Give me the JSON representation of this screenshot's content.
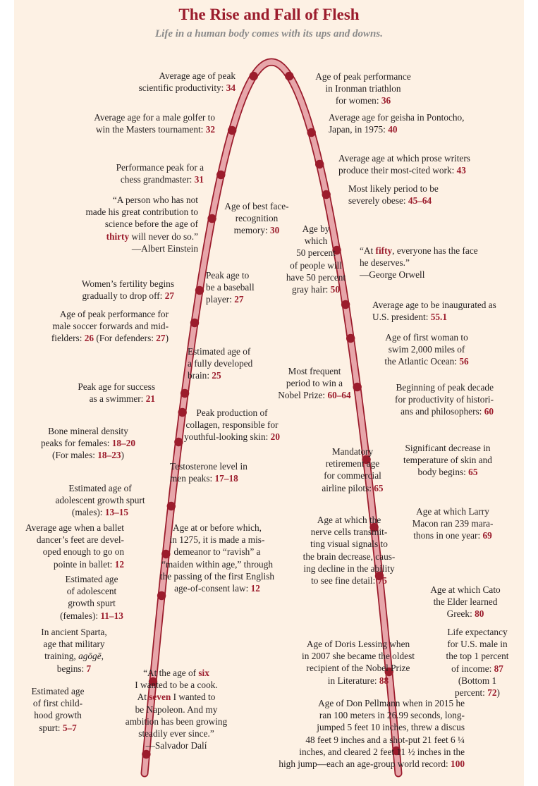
{
  "title": "The Rise and Fall of Flesh",
  "subtitle": "Life in a human body comes with its ups and downs.",
  "colors": {
    "background": "#fdf1e4",
    "curve_fill": "#e7a6aa",
    "curve_edge": "#9b1c2c",
    "dot": "#9b1c2c",
    "highlight": "#9b1c2c"
  },
  "annotations": [
    {
      "id": "peak-scientific-productivity",
      "side": "left",
      "age": "34",
      "lines": [
        [
          {
            "t": "Average age of peak"
          }
        ],
        [
          {
            "t": "scientific productivity: "
          },
          {
            "t": "34",
            "b": true
          }
        ]
      ]
    },
    {
      "id": "peak-ironman-women",
      "side": "right",
      "age": "36",
      "lines": [
        [
          {
            "t": "Age of peak performance"
          }
        ],
        [
          {
            "t": "in Ironman triathlon"
          }
        ],
        [
          {
            "t": "for women: "
          },
          {
            "t": "36",
            "b": true
          }
        ]
      ]
    },
    {
      "id": "masters-golfer",
      "side": "left",
      "age": "32",
      "lines": [
        [
          {
            "t": "Average age for a male golfer to"
          }
        ],
        [
          {
            "t": "win the Masters tournament: "
          },
          {
            "t": "32",
            "b": true
          }
        ]
      ]
    },
    {
      "id": "geisha-pontocho",
      "side": "right",
      "age": "40",
      "lines": [
        [
          {
            "t": "Average age for geisha in Pontocho,"
          }
        ],
        [
          {
            "t": "Japan, in 1975: "
          },
          {
            "t": "40",
            "b": true
          }
        ]
      ]
    },
    {
      "id": "chess-grandmaster",
      "side": "left",
      "age": "31",
      "lines": [
        [
          {
            "t": "Performance peak for a"
          }
        ],
        [
          {
            "t": "chess grandmaster: "
          },
          {
            "t": "31",
            "b": true
          }
        ]
      ]
    },
    {
      "id": "prose-writers",
      "side": "right",
      "age": "43",
      "lines": [
        [
          {
            "t": "Average age at which prose writers"
          }
        ],
        [
          {
            "t": "produce their most-cited work: "
          },
          {
            "t": "43",
            "b": true
          }
        ]
      ]
    },
    {
      "id": "severely-obese",
      "side": "right",
      "age": "45–64",
      "lines": [
        [
          {
            "t": "Most likely period to be"
          }
        ],
        [
          {
            "t": "severely obese: "
          },
          {
            "t": "45–64",
            "b": true
          }
        ]
      ]
    },
    {
      "id": "einstein-quote",
      "side": "left",
      "age": "thirty",
      "lines": [
        [
          {
            "t": "“A person who has not"
          }
        ],
        [
          {
            "t": "made his great contribution to"
          }
        ],
        [
          {
            "t": "science before the age of"
          }
        ],
        [
          {
            "t": "thirty",
            "b": true
          },
          {
            "t": " will never do so.”"
          }
        ],
        [
          {
            "t": "—Albert Einstein"
          }
        ]
      ]
    },
    {
      "id": "face-recognition",
      "side": "left",
      "age": "30",
      "lines": [
        [
          {
            "t": "Age of best face-"
          }
        ],
        [
          {
            "t": "recognition"
          }
        ],
        [
          {
            "t": "memory: "
          },
          {
            "t": "30",
            "b": true
          }
        ]
      ]
    },
    {
      "id": "gray-hair",
      "side": "right",
      "age": "50",
      "lines": [
        [
          {
            "t": "Age by"
          }
        ],
        [
          {
            "t": "which"
          }
        ],
        [
          {
            "t": "50 percent"
          }
        ],
        [
          {
            "t": "of people will"
          }
        ],
        [
          {
            "t": "have 50 percent"
          }
        ],
        [
          {
            "t": "gray hair: "
          },
          {
            "t": "50",
            "b": true
          }
        ]
      ]
    },
    {
      "id": "orwell-quote",
      "side": "right",
      "age": "fifty",
      "lines": [
        [
          {
            "t": "“At "
          },
          {
            "t": "fifty",
            "b": true
          },
          {
            "t": ", everyone has the face"
          }
        ],
        [
          {
            "t": "he deserves.”"
          }
        ],
        [
          {
            "t": "—George Orwell"
          }
        ]
      ]
    },
    {
      "id": "fertility-drop",
      "side": "left",
      "age": "27",
      "lines": [
        [
          {
            "t": "Women’s fertility begins"
          }
        ],
        [
          {
            "t": "gradually to drop off: "
          },
          {
            "t": "27",
            "b": true
          }
        ]
      ]
    },
    {
      "id": "baseball-player",
      "side": "left",
      "age": "27",
      "lines": [
        [
          {
            "t": "Peak age to"
          }
        ],
        [
          {
            "t": "be a baseball"
          }
        ],
        [
          {
            "t": "player: "
          },
          {
            "t": "27",
            "b": true
          }
        ]
      ]
    },
    {
      "id": "us-president",
      "side": "right",
      "age": "55.1",
      "lines": [
        [
          {
            "t": "Average age to be inaugurated as"
          }
        ],
        [
          {
            "t": "U.S. president: "
          },
          {
            "t": "55.1",
            "b": true
          }
        ]
      ]
    },
    {
      "id": "soccer-forwards",
      "side": "left",
      "age": "26",
      "lines": [
        [
          {
            "t": "Age of peak performance for"
          }
        ],
        [
          {
            "t": "male soccer forwards and mid-"
          }
        ],
        [
          {
            "t": "fielders: "
          },
          {
            "t": "26",
            "b": true
          },
          {
            "t": " (For defenders: "
          },
          {
            "t": "27",
            "b": true
          },
          {
            "t": ")"
          }
        ]
      ]
    },
    {
      "id": "atlantic-swim",
      "side": "right",
      "age": "56",
      "lines": [
        [
          {
            "t": "Age of first woman to"
          }
        ],
        [
          {
            "t": "swim 2,000 miles of"
          }
        ],
        [
          {
            "t": "the Atlantic Ocean: "
          },
          {
            "t": "56",
            "b": true
          }
        ]
      ]
    },
    {
      "id": "developed-brain",
      "side": "left",
      "age": "25",
      "lines": [
        [
          {
            "t": "Estimated age of"
          }
        ],
        [
          {
            "t": "a fully developed"
          }
        ],
        [
          {
            "t": "brain: "
          },
          {
            "t": "25",
            "b": true
          }
        ]
      ]
    },
    {
      "id": "nobel-prize",
      "side": "right",
      "age": "60–64",
      "lines": [
        [
          {
            "t": "Most frequent"
          }
        ],
        [
          {
            "t": "period to win a"
          }
        ],
        [
          {
            "t": "Nobel Prize: "
          },
          {
            "t": "60–64",
            "b": true
          }
        ]
      ]
    },
    {
      "id": "historians-philosophers",
      "side": "right",
      "age": "60",
      "lines": [
        [
          {
            "t": "Beginning of peak decade"
          }
        ],
        [
          {
            "t": "for productivity of histori-"
          }
        ],
        [
          {
            "t": "ans and philosophers: "
          },
          {
            "t": "60",
            "b": true
          }
        ]
      ]
    },
    {
      "id": "swimmer",
      "side": "left",
      "age": "21",
      "lines": [
        [
          {
            "t": "Peak age for success"
          }
        ],
        [
          {
            "t": "as a swimmer: "
          },
          {
            "t": "21",
            "b": true
          }
        ]
      ]
    },
    {
      "id": "collagen",
      "side": "left",
      "age": "20",
      "lines": [
        [
          {
            "t": "Peak production of"
          }
        ],
        [
          {
            "t": "collagen, responsible for"
          }
        ],
        [
          {
            "t": "youthful-looking skin: "
          },
          {
            "t": "20",
            "b": true
          }
        ]
      ]
    },
    {
      "id": "bone-density",
      "side": "left",
      "age": "18–20",
      "lines": [
        [
          {
            "t": "Bone mineral density"
          }
        ],
        [
          {
            "t": "peaks for females: "
          },
          {
            "t": "18–20",
            "b": true
          }
        ],
        [
          {
            "t": "(For males: "
          },
          {
            "t": "18–23",
            "b": true
          },
          {
            "t": ")"
          }
        ]
      ]
    },
    {
      "id": "testosterone",
      "side": "left",
      "age": "17–18",
      "lines": [
        [
          {
            "t": "Testosterone level in"
          }
        ],
        [
          {
            "t": "men peaks: "
          },
          {
            "t": "17–18",
            "b": true
          }
        ]
      ]
    },
    {
      "id": "airline-pilots",
      "side": "right",
      "age": "65",
      "lines": [
        [
          {
            "t": "Mandatory"
          }
        ],
        [
          {
            "t": "retirement age"
          }
        ],
        [
          {
            "t": "for commercial"
          }
        ],
        [
          {
            "t": "airline pilots: "
          },
          {
            "t": "65",
            "b": true
          }
        ]
      ]
    },
    {
      "id": "skin-temperature",
      "side": "right",
      "age": "65",
      "lines": [
        [
          {
            "t": "Significant decrease in"
          }
        ],
        [
          {
            "t": "temperature of skin and"
          }
        ],
        [
          {
            "t": "body begins: "
          },
          {
            "t": "65",
            "b": true
          }
        ]
      ]
    },
    {
      "id": "growth-spurt-males",
      "side": "left",
      "age": "13–15",
      "lines": [
        [
          {
            "t": "Estimated age of"
          }
        ],
        [
          {
            "t": "adolescent growth spurt"
          }
        ],
        [
          {
            "t": "(males): "
          },
          {
            "t": "13–15",
            "b": true
          }
        ]
      ]
    },
    {
      "id": "larry-macon",
      "side": "right",
      "age": "69",
      "lines": [
        [
          {
            "t": "Age at which Larry"
          }
        ],
        [
          {
            "t": "Macon ran 239 mara-"
          }
        ],
        [
          {
            "t": "thons in one year: "
          },
          {
            "t": "69",
            "b": true
          }
        ]
      ]
    },
    {
      "id": "ballet-pointe",
      "side": "left",
      "age": "12",
      "lines": [
        [
          {
            "t": "Average age when a ballet"
          }
        ],
        [
          {
            "t": "dancer’s feet are devel-"
          }
        ],
        [
          {
            "t": "oped enough to go on"
          }
        ],
        [
          {
            "t": "pointe in ballet: "
          },
          {
            "t": "12",
            "b": true
          }
        ]
      ]
    },
    {
      "id": "age-of-consent",
      "side": "left",
      "age": "12",
      "lines": [
        [
          {
            "t": "Age at or before which,"
          }
        ],
        [
          {
            "t": "in 1275, it is made a mis-"
          }
        ],
        [
          {
            "t": "demeanor to “ravish” a"
          }
        ],
        [
          {
            "t": "“maiden within age,” through"
          }
        ],
        [
          {
            "t": "the passing of the first English"
          }
        ],
        [
          {
            "t": "age-of-consent law: "
          },
          {
            "t": "12",
            "b": true
          }
        ]
      ]
    },
    {
      "id": "visual-nerve-cells",
      "side": "right",
      "age": "75",
      "lines": [
        [
          {
            "t": "Age at which the"
          }
        ],
        [
          {
            "t": "nerve cells transmit-"
          }
        ],
        [
          {
            "t": "ting visual signals to"
          }
        ],
        [
          {
            "t": "the brain decrease, caus-"
          }
        ],
        [
          {
            "t": "ing decline in the ability"
          }
        ],
        [
          {
            "t": "to see fine detail: "
          },
          {
            "t": "75",
            "b": true
          }
        ]
      ]
    },
    {
      "id": "growth-spurt-females",
      "side": "left",
      "age": "11–13",
      "lines": [
        [
          {
            "t": "Estimated age"
          }
        ],
        [
          {
            "t": "of adolescent"
          }
        ],
        [
          {
            "t": "growth spurt"
          }
        ],
        [
          {
            "t": "(females): "
          },
          {
            "t": "11–13",
            "b": true
          }
        ]
      ]
    },
    {
      "id": "cato-greek",
      "side": "right",
      "age": "80",
      "lines": [
        [
          {
            "t": "Age at which Cato"
          }
        ],
        [
          {
            "t": "the Elder learned"
          }
        ],
        [
          {
            "t": "Greek: "
          },
          {
            "t": "80",
            "b": true
          }
        ]
      ]
    },
    {
      "id": "sparta-agoge",
      "side": "left",
      "age": "7",
      "lines": [
        [
          {
            "t": "In ancient Sparta,"
          }
        ],
        [
          {
            "t": "age that military"
          }
        ],
        [
          {
            "t": "training, "
          },
          {
            "t": "agōgē",
            "i": true
          },
          {
            "t": ","
          }
        ],
        [
          {
            "t": "begins: "
          },
          {
            "t": "7",
            "b": true
          }
        ]
      ]
    },
    {
      "id": "doris-lessing",
      "side": "right",
      "age": "88",
      "lines": [
        [
          {
            "t": "Age of Doris Lessing when"
          }
        ],
        [
          {
            "t": "in 2007 she became the oldest"
          }
        ],
        [
          {
            "t": "recipient of the Nobel Prize"
          }
        ],
        [
          {
            "t": "in Literature: "
          },
          {
            "t": "88",
            "b": true
          }
        ]
      ]
    },
    {
      "id": "life-expectancy",
      "side": "right",
      "age": "87",
      "lines": [
        [
          {
            "t": "Life expectancy"
          }
        ],
        [
          {
            "t": "for U.S. male in"
          }
        ],
        [
          {
            "t": "the top 1 percent"
          }
        ],
        [
          {
            "t": "of income: "
          },
          {
            "t": "87",
            "b": true
          }
        ],
        [
          {
            "t": "(Bottom 1"
          }
        ],
        [
          {
            "t": "percent: "
          },
          {
            "t": "72",
            "b": true
          },
          {
            "t": ")"
          }
        ]
      ]
    },
    {
      "id": "dali-quote",
      "side": "left",
      "age": "six",
      "lines": [
        [
          {
            "t": "“At the age of "
          },
          {
            "t": "six",
            "b": true
          }
        ],
        [
          {
            "t": "I wanted to be a cook."
          }
        ],
        [
          {
            "t": "At "
          },
          {
            "t": "seven",
            "b": true
          },
          {
            "t": " I wanted to"
          }
        ],
        [
          {
            "t": "be Napoleon. And my"
          }
        ],
        [
          {
            "t": "ambition has been growing"
          }
        ],
        [
          {
            "t": "steadily ever since.”"
          }
        ],
        [
          {
            "t": "—Salvador Dalí"
          }
        ]
      ]
    },
    {
      "id": "childhood-growth-spurt",
      "side": "left",
      "age": "5–7",
      "lines": [
        [
          {
            "t": "Estimated age"
          }
        ],
        [
          {
            "t": "of first child-"
          }
        ],
        [
          {
            "t": "hood growth"
          }
        ],
        [
          {
            "t": "spurt: "
          },
          {
            "t": "5–7",
            "b": true
          }
        ]
      ]
    },
    {
      "id": "don-pellmann",
      "side": "right",
      "age": "100",
      "lines": [
        [
          {
            "t": "Age of Don Pellmann when in 2015 he"
          }
        ],
        [
          {
            "t": "ran 100 meters in 26.99 seconds, long-"
          }
        ],
        [
          {
            "t": "jumped 5 feet 10 inches, threw a discus"
          }
        ],
        [
          {
            "t": "48 feet 9 inches and a shot-put 21 feet 6 ¼"
          }
        ],
        [
          {
            "t": "inches, and cleared 2 feet 11 ½ inches in the"
          }
        ],
        [
          {
            "t": "high jump—each an age-group world record: "
          },
          {
            "t": "100",
            "b": true
          }
        ]
      ]
    }
  ]
}
